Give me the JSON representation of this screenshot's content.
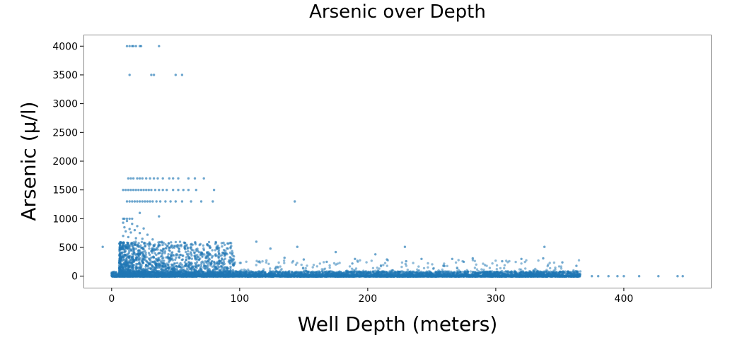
{
  "chart_data": {
    "type": "scatter",
    "title": "Arsenic over Depth",
    "xlabel": "Well Depth (meters)",
    "ylabel": "Arsenic (µ/l)",
    "xlim": [
      -22,
      468
    ],
    "ylim": [
      -200,
      4200
    ],
    "xticks": [
      0,
      100,
      200,
      300,
      400
    ],
    "yticks": [
      0,
      500,
      1000,
      1500,
      2000,
      2500,
      3000,
      3500,
      4000
    ],
    "grid": false,
    "legend": "none",
    "marker_color": "#1f77b4",
    "series": [
      {
        "points": [
          [
            12,
            4000
          ],
          [
            14,
            4000
          ],
          [
            16,
            4000
          ],
          [
            17,
            4000
          ],
          [
            19,
            4000
          ],
          [
            22,
            4000
          ],
          [
            23,
            4000
          ],
          [
            37,
            4000
          ],
          [
            14,
            3500
          ],
          [
            31,
            3500
          ],
          [
            33,
            3500
          ],
          [
            50,
            3500
          ],
          [
            55,
            3500
          ],
          [
            13,
            1700
          ],
          [
            15,
            1700
          ],
          [
            17,
            1700
          ],
          [
            20,
            1700
          ],
          [
            22,
            1700
          ],
          [
            24,
            1700
          ],
          [
            27,
            1700
          ],
          [
            30,
            1700
          ],
          [
            33,
            1700
          ],
          [
            36,
            1700
          ],
          [
            40,
            1700
          ],
          [
            45,
            1700
          ],
          [
            48,
            1700
          ],
          [
            52,
            1700
          ],
          [
            60,
            1700
          ],
          [
            65,
            1700
          ],
          [
            72,
            1700
          ],
          [
            9,
            1500
          ],
          [
            11,
            1500
          ],
          [
            13,
            1500
          ],
          [
            15,
            1500
          ],
          [
            17,
            1500
          ],
          [
            19,
            1500
          ],
          [
            21,
            1500
          ],
          [
            23,
            1500
          ],
          [
            25,
            1500
          ],
          [
            27,
            1500
          ],
          [
            29,
            1500
          ],
          [
            31,
            1500
          ],
          [
            34,
            1500
          ],
          [
            37,
            1500
          ],
          [
            40,
            1500
          ],
          [
            43,
            1500
          ],
          [
            48,
            1500
          ],
          [
            52,
            1500
          ],
          [
            56,
            1500
          ],
          [
            60,
            1500
          ],
          [
            66,
            1500
          ],
          [
            80,
            1500
          ],
          [
            12,
            1300
          ],
          [
            14,
            1300
          ],
          [
            16,
            1300
          ],
          [
            18,
            1300
          ],
          [
            20,
            1300
          ],
          [
            22,
            1300
          ],
          [
            24,
            1300
          ],
          [
            26,
            1300
          ],
          [
            28,
            1300
          ],
          [
            30,
            1300
          ],
          [
            32,
            1300
          ],
          [
            35,
            1300
          ],
          [
            38,
            1300
          ],
          [
            42,
            1300
          ],
          [
            46,
            1300
          ],
          [
            50,
            1300
          ],
          [
            55,
            1300
          ],
          [
            62,
            1300
          ],
          [
            70,
            1300
          ],
          [
            79,
            1300
          ],
          [
            143,
            1300
          ],
          [
            22,
            1100
          ],
          [
            37,
            1040
          ],
          [
            9,
            1000
          ],
          [
            10,
            1000
          ],
          [
            12,
            1000
          ],
          [
            14,
            1000
          ],
          [
            16,
            1000
          ],
          [
            9,
            930
          ],
          [
            12,
            960
          ],
          [
            16,
            910
          ],
          [
            20,
            870
          ],
          [
            10,
            850
          ],
          [
            14,
            820
          ],
          [
            18,
            800
          ],
          [
            25,
            830
          ],
          [
            11,
            780
          ],
          [
            15,
            760
          ],
          [
            22,
            750
          ],
          [
            28,
            720
          ],
          [
            9,
            700
          ],
          [
            13,
            680
          ],
          [
            19,
            660
          ],
          [
            24,
            650
          ],
          [
            32,
            640
          ],
          [
            -7,
            510
          ],
          [
            145,
            510
          ],
          [
            229,
            510
          ],
          [
            338,
            510
          ],
          [
            113,
            600
          ],
          [
            124,
            480
          ],
          [
            175,
            420
          ],
          [
            206,
            380
          ],
          [
            242,
            300
          ],
          [
            266,
            300
          ],
          [
            282,
            310
          ],
          [
            320,
            300
          ],
          [
            337,
            310
          ],
          [
            190,
            300
          ],
          [
            215,
            290
          ],
          [
            150,
            290
          ],
          [
            305,
            260
          ],
          [
            352,
            240
          ],
          [
            363,
            180
          ],
          [
            230,
            260
          ],
          [
            168,
            250
          ],
          [
            135,
            320
          ],
          [
            188,
            220
          ],
          [
            275,
            250
          ]
        ]
      }
    ]
  }
}
